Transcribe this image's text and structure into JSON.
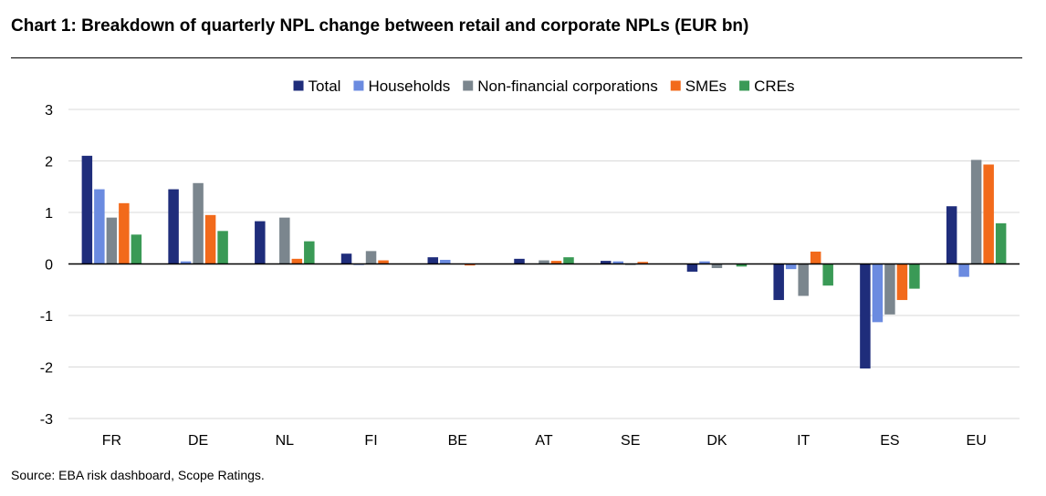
{
  "title": "Chart 1: Breakdown of quarterly NPL change between retail and corporate NPLs (EUR bn)",
  "source": "Source: EBA risk dashboard, Scope Ratings.",
  "chart_data": {
    "type": "bar",
    "categories": [
      "FR",
      "DE",
      "NL",
      "FI",
      "BE",
      "AT",
      "SE",
      "DK",
      "IT",
      "ES",
      "EU"
    ],
    "ylim": [
      -3,
      3
    ],
    "yticks": [
      3,
      2,
      1,
      0,
      -1,
      -2,
      -3
    ],
    "grid": true,
    "legend_position": "top-center",
    "series": [
      {
        "name": "Total",
        "color": "#1f2d7b",
        "values": [
          2.1,
          1.45,
          0.83,
          0.2,
          0.13,
          0.1,
          0.06,
          -0.15,
          -0.7,
          -2.03,
          1.12
        ]
      },
      {
        "name": "Households",
        "color": "#6b8be0",
        "values": [
          1.45,
          0.05,
          0.0,
          -0.02,
          0.08,
          0.0,
          0.05,
          0.05,
          -0.1,
          -1.13,
          -0.25
        ]
      },
      {
        "name": "Non-financial corporations",
        "color": "#7b868e",
        "values": [
          0.9,
          1.57,
          0.9,
          0.25,
          0.0,
          0.07,
          -0.02,
          -0.08,
          -0.62,
          -0.98,
          2.02
        ]
      },
      {
        "name": "SMEs",
        "color": "#f26a1b",
        "values": [
          1.18,
          0.95,
          0.1,
          0.07,
          -0.03,
          0.06,
          0.04,
          0.0,
          0.24,
          -0.7,
          1.93
        ]
      },
      {
        "name": "CREs",
        "color": "#3a9a56",
        "values": [
          0.57,
          0.64,
          0.44,
          0.0,
          0.0,
          0.13,
          0.0,
          -0.05,
          -0.42,
          -0.48,
          0.79
        ]
      }
    ]
  }
}
